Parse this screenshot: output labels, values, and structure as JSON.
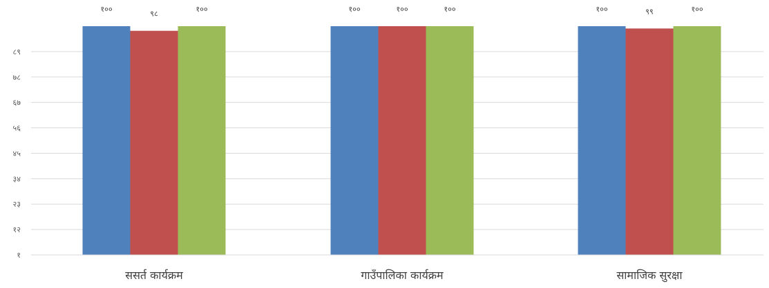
{
  "chart_data": {
    "type": "bar",
    "categories": [
      "सशर्त कार्यक्रम",
      "गाउँपालिका कार्यक्रम",
      "सामाजिक सुरक्षा"
    ],
    "category_labels": [
      "ससर्त कार्यक्रम",
      "गाउँपालिका कार्यक्रम",
      "सामाजिक सुरक्षा"
    ],
    "series": [
      {
        "values": [
          100,
          100,
          100
        ],
        "labels": [
          "१००",
          "१००",
          "१००"
        ],
        "color": "#4f81bd"
      },
      {
        "values": [
          98,
          100,
          99
        ],
        "labels": [
          "९८",
          "१००",
          "९९"
        ],
        "color": "#c0504d"
      },
      {
        "values": [
          100,
          100,
          100
        ],
        "labels": [
          "१००",
          "१००",
          "१००"
        ],
        "color": "#9bbb59"
      }
    ],
    "yticks": [
      1,
      12,
      23,
      34,
      45,
      56,
      67,
      78,
      89
    ],
    "ytick_labels": [
      "१",
      "१२",
      "२३",
      "३४",
      "४५",
      "५६",
      "६७",
      "७८",
      "८९"
    ],
    "ylim": [
      1,
      100
    ],
    "title": "",
    "xlabel": "",
    "ylabel": "",
    "grid": true,
    "legend": "none"
  }
}
